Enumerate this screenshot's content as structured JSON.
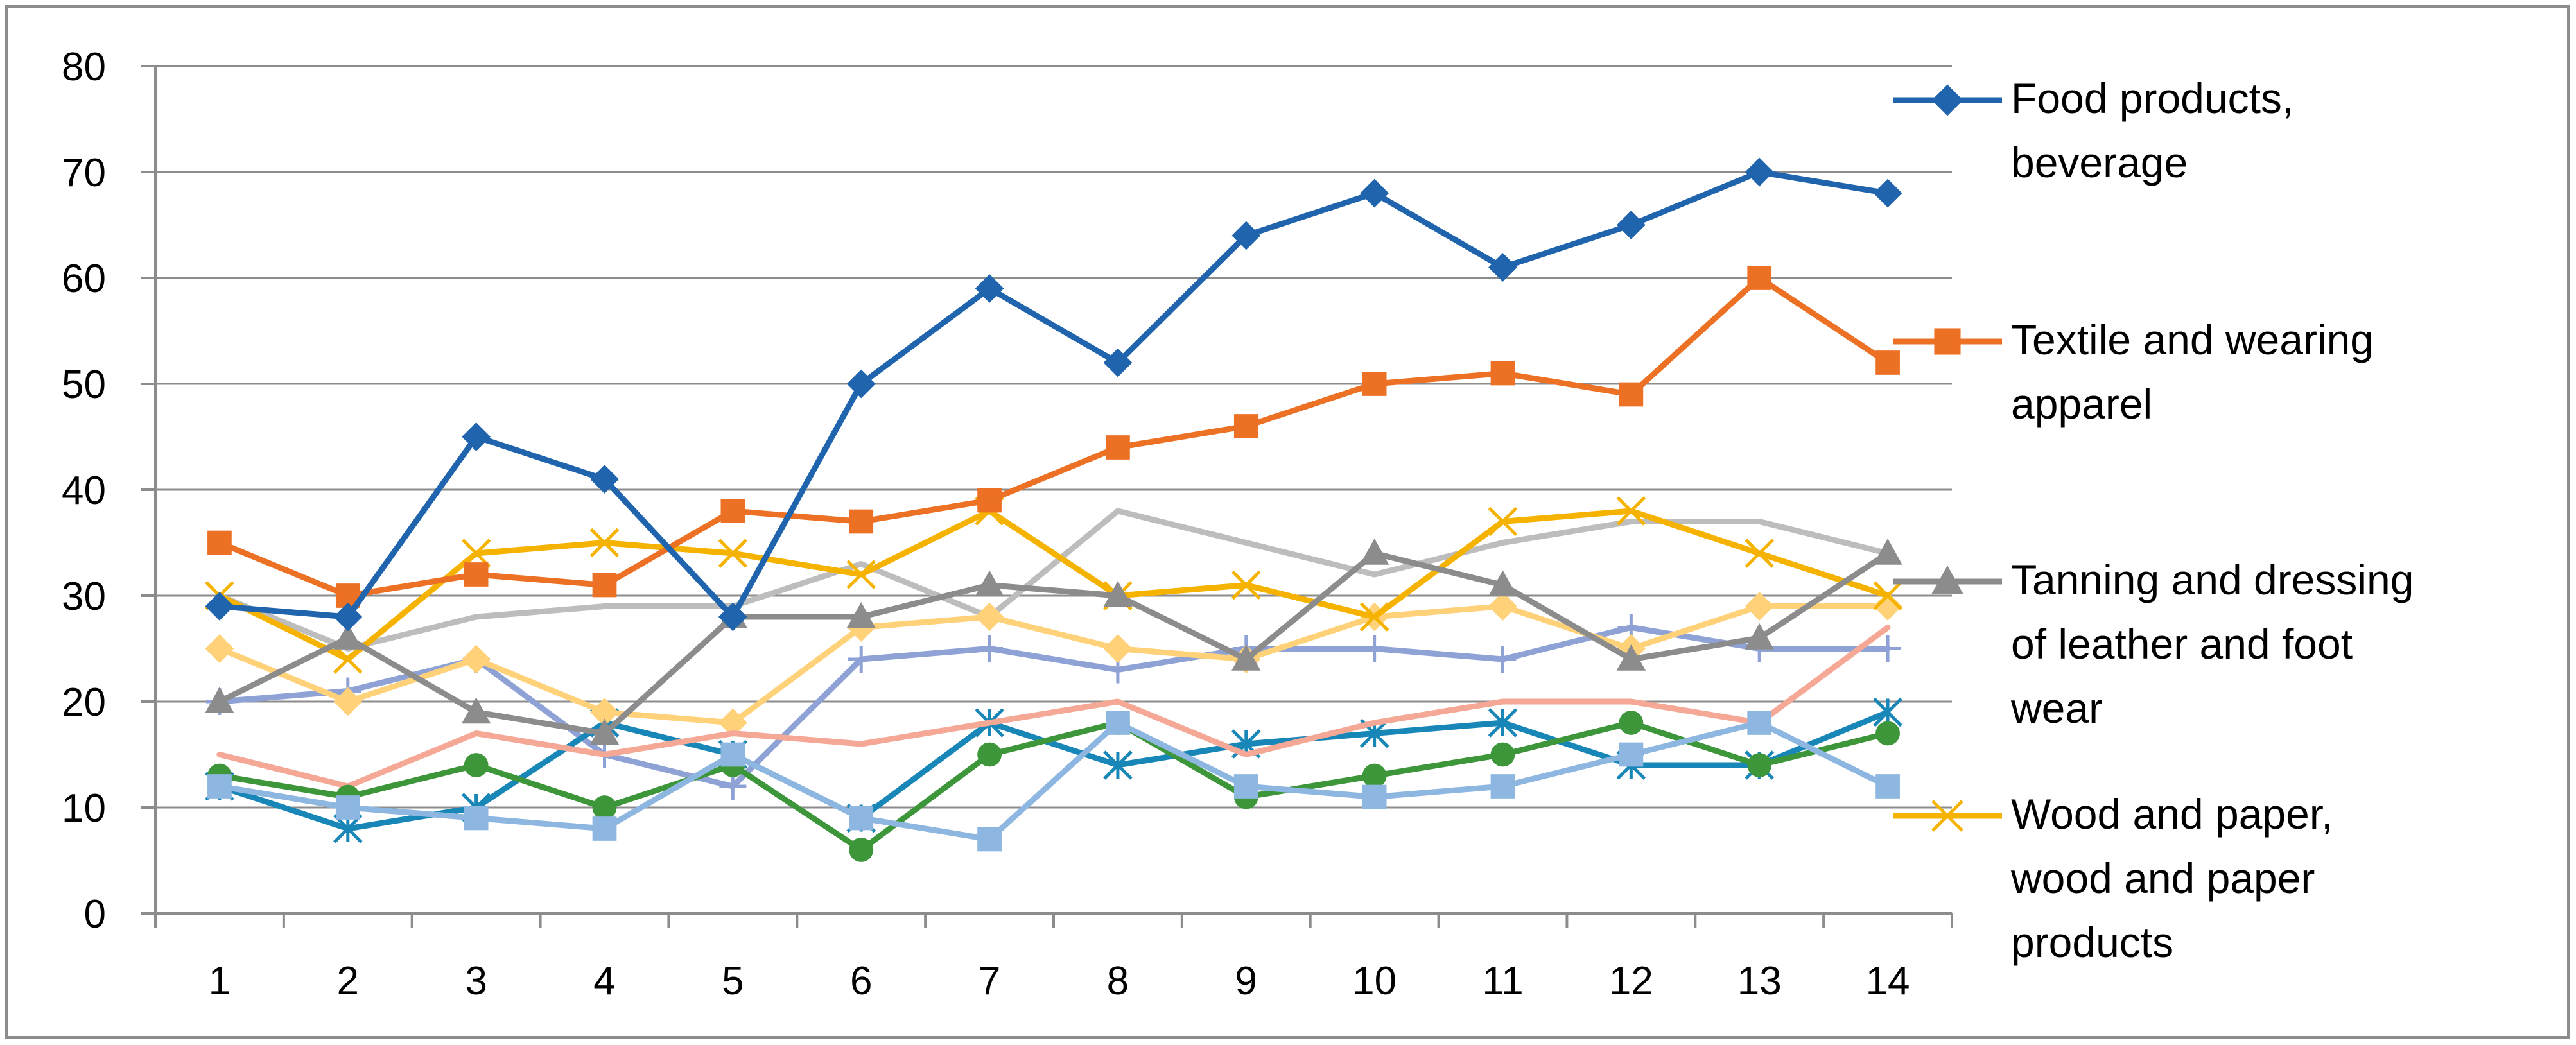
{
  "chart_data": {
    "type": "line",
    "title": "",
    "xlabel": "",
    "ylabel": "",
    "x": [
      1,
      2,
      3,
      4,
      5,
      6,
      7,
      8,
      9,
      10,
      11,
      12,
      13,
      14
    ],
    "x_tick_labels": [
      "1",
      "2",
      "3",
      "4",
      "5",
      "6",
      "7",
      "8",
      "9",
      "10",
      "11",
      "12",
      "13",
      "14"
    ],
    "ylim": [
      0,
      80
    ],
    "y_ticks": [
      0,
      10,
      20,
      30,
      40,
      50,
      60,
      70,
      80
    ],
    "y_tick_labels": [
      "0",
      "10",
      "20",
      "30",
      "40",
      "50",
      "60",
      "70",
      "80"
    ],
    "grid": "horizontal",
    "legend_position": "right",
    "series": [
      {
        "name": "Food products, beverage",
        "legend_lines": [
          "Food products,",
          "beverage"
        ],
        "color": "#1f64ad",
        "marker": "diamond",
        "values": [
          29,
          28,
          45,
          41,
          28,
          50,
          59,
          52,
          64,
          68,
          61,
          65,
          70,
          68
        ]
      },
      {
        "name": "Textile and wearing apparel",
        "legend_lines": [
          "Textile and wearing",
          "apparel"
        ],
        "color": "#ed7125",
        "marker": "square",
        "values": [
          35,
          30,
          32,
          31,
          38,
          37,
          39,
          44,
          46,
          50,
          51,
          49,
          60,
          52
        ]
      },
      {
        "name": "Tanning and dressing of leather and foot wear",
        "legend_lines": [
          "Tanning and dressing",
          "of leather and foot",
          "wear"
        ],
        "color": "#8c8c8c",
        "marker": "triangle",
        "values": [
          20,
          26,
          19,
          17,
          28,
          28,
          31,
          30,
          24,
          34,
          31,
          24,
          26,
          34
        ]
      },
      {
        "name": "Wood and paper, wood and paper products",
        "legend_lines": [
          "Wood and paper,",
          "wood and paper",
          "products"
        ],
        "color": "#f5b300",
        "marker": "x",
        "values": [
          30,
          24,
          34,
          35,
          34,
          32,
          38,
          30,
          31,
          28,
          37,
          38,
          34,
          30
        ]
      },
      {
        "name": "",
        "color": "#8ea2d6",
        "marker": "plus",
        "values": [
          20,
          21,
          24,
          15,
          12,
          24,
          25,
          23,
          25,
          25,
          24,
          27,
          25,
          25
        ]
      },
      {
        "name": "",
        "color": "#1887b8",
        "marker": "asterisk",
        "values": [
          12,
          8,
          10,
          18,
          15,
          9,
          18,
          14,
          16,
          17,
          18,
          14,
          14,
          19
        ]
      },
      {
        "name": "",
        "color": "#bdbdbd",
        "marker": "none",
        "values": [
          30,
          25,
          28,
          29,
          29,
          33,
          28,
          38,
          35,
          32,
          35,
          37,
          37,
          34
        ]
      },
      {
        "name": "",
        "color": "#ffd27a",
        "marker": "diamond",
        "values": [
          25,
          20,
          24,
          19,
          18,
          27,
          28,
          25,
          24,
          28,
          29,
          25,
          29,
          29
        ]
      },
      {
        "name": "",
        "color": "#f5a896",
        "marker": "none",
        "values": [
          15,
          12,
          17,
          15,
          17,
          16,
          18,
          20,
          15,
          18,
          20,
          20,
          18,
          27
        ]
      },
      {
        "name": "",
        "color": "#3d963a",
        "marker": "circle",
        "values": [
          13,
          11,
          14,
          10,
          14,
          6,
          15,
          18,
          11,
          13,
          15,
          18,
          14,
          17
        ]
      },
      {
        "name": "",
        "color": "#8db7e0",
        "marker": "square",
        "values": [
          12,
          10,
          9,
          8,
          15,
          9,
          7,
          18,
          12,
          11,
          12,
          15,
          18,
          12
        ]
      }
    ]
  }
}
